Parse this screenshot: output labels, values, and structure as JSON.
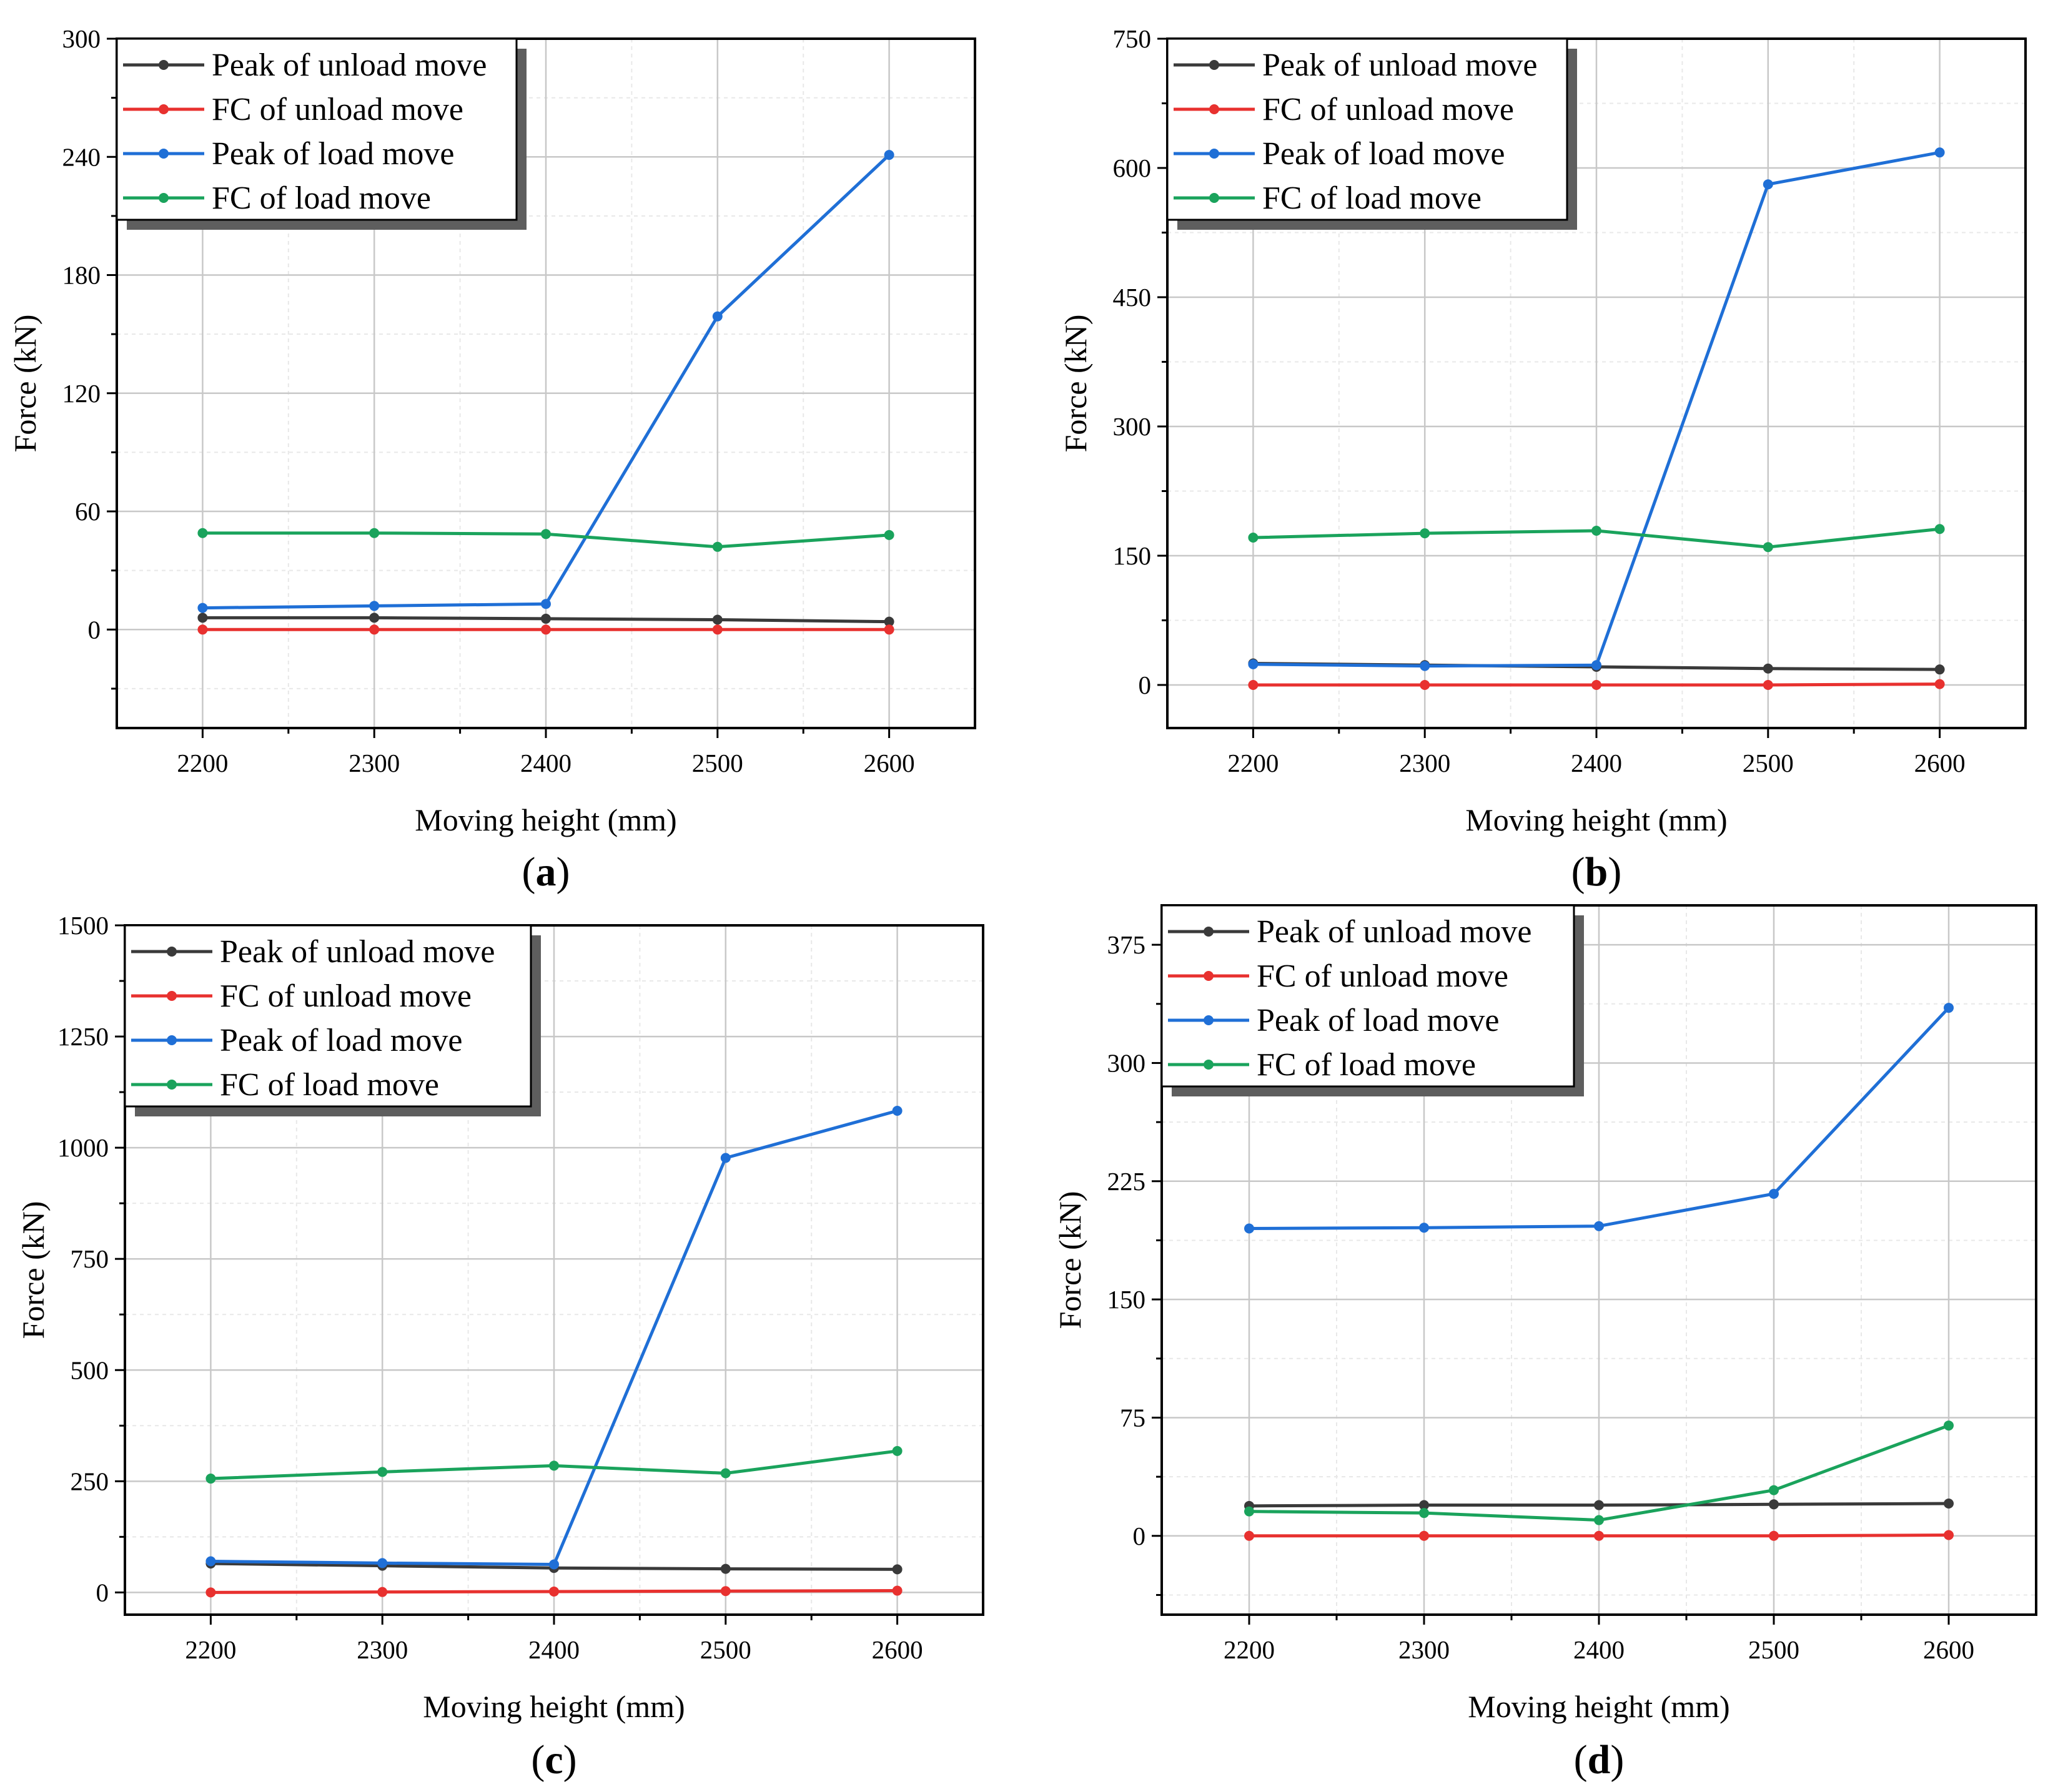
{
  "chart_data": [
    {
      "type": "line",
      "panel_label": "a",
      "xlabel": "Moving height (mm)",
      "ylabel": "Force (kN)",
      "x": [
        2200,
        2300,
        2400,
        2500,
        2600
      ],
      "xlim": [
        2150,
        2650
      ],
      "ylim": [
        -50,
        300
      ],
      "yticks": [
        0,
        60,
        120,
        180,
        240,
        300
      ],
      "legend_position": "top-left",
      "grid": true,
      "series": [
        {
          "name": "Peak of unload move",
          "color": "#3a3a3a",
          "values": [
            6,
            6,
            5.5,
            5,
            4
          ]
        },
        {
          "name": "FC of unload move",
          "color": "#e8312f",
          "values": [
            0,
            0,
            0,
            0,
            0
          ]
        },
        {
          "name": "Peak of load move",
          "color": "#1f6fd6",
          "values": [
            11,
            12,
            13,
            159,
            241
          ]
        },
        {
          "name": "FC of load move",
          "color": "#1aa35c",
          "values": [
            49,
            49,
            48.5,
            42,
            48
          ]
        }
      ]
    },
    {
      "type": "line",
      "panel_label": "b",
      "xlabel": "Moving height (mm)",
      "ylabel": "Force (kN)",
      "x": [
        2200,
        2300,
        2400,
        2500,
        2600
      ],
      "xlim": [
        2150,
        2650
      ],
      "ylim": [
        -50,
        750
      ],
      "yticks": [
        0,
        150,
        300,
        450,
        600,
        750
      ],
      "legend_position": "top-left",
      "grid": true,
      "series": [
        {
          "name": "Peak of unload move",
          "color": "#3a3a3a",
          "values": [
            25,
            23,
            21,
            19,
            18
          ]
        },
        {
          "name": "FC of unload move",
          "color": "#e8312f",
          "values": [
            0,
            0,
            0,
            0,
            1
          ]
        },
        {
          "name": "Peak of load move",
          "color": "#1f6fd6",
          "values": [
            24,
            22,
            23,
            581,
            618
          ]
        },
        {
          "name": "FC of load move",
          "color": "#1aa35c",
          "values": [
            171,
            176,
            179,
            160,
            181
          ]
        }
      ]
    },
    {
      "type": "line",
      "panel_label": "c",
      "xlabel": "Moving height (mm)",
      "ylabel": "Force (kN)",
      "x": [
        2200,
        2300,
        2400,
        2500,
        2600
      ],
      "xlim": [
        2150,
        2650
      ],
      "ylim": [
        -50,
        1500
      ],
      "yticks": [
        0,
        250,
        500,
        750,
        1000,
        1250,
        1500
      ],
      "legend_position": "top-left",
      "grid": true,
      "series": [
        {
          "name": "Peak of unload move",
          "color": "#3a3a3a",
          "values": [
            65,
            60,
            55,
            53,
            52
          ]
        },
        {
          "name": "FC of unload move",
          "color": "#e8312f",
          "values": [
            0,
            1,
            2,
            3,
            4
          ]
        },
        {
          "name": "Peak of load move",
          "color": "#1f6fd6",
          "values": [
            70,
            66,
            63,
            977,
            1083
          ]
        },
        {
          "name": "FC of load move",
          "color": "#1aa35c",
          "values": [
            256,
            271,
            285,
            268,
            318
          ]
        }
      ]
    },
    {
      "type": "line",
      "panel_label": "d",
      "xlabel": "Moving height (mm)",
      "ylabel": "Force (kN)",
      "x": [
        2200,
        2300,
        2400,
        2500,
        2600
      ],
      "xlim": [
        2150,
        2650
      ],
      "ylim": [
        -50,
        400
      ],
      "yticks": [
        0,
        75,
        150,
        225,
        300,
        375
      ],
      "legend_position": "top-left",
      "grid": true,
      "series": [
        {
          "name": "Peak of unload move",
          "color": "#3a3a3a",
          "values": [
            19,
            19.5,
            19.5,
            20,
            20.5
          ]
        },
        {
          "name": "FC of unload move",
          "color": "#e8312f",
          "values": [
            0,
            0,
            0,
            0,
            0.5
          ]
        },
        {
          "name": "Peak of load move",
          "color": "#1f6fd6",
          "values": [
            195,
            195.5,
            196.5,
            217,
            335
          ]
        },
        {
          "name": "FC of load move",
          "color": "#1aa35c",
          "values": [
            15.5,
            14.5,
            10,
            29,
            70
          ]
        }
      ]
    }
  ]
}
